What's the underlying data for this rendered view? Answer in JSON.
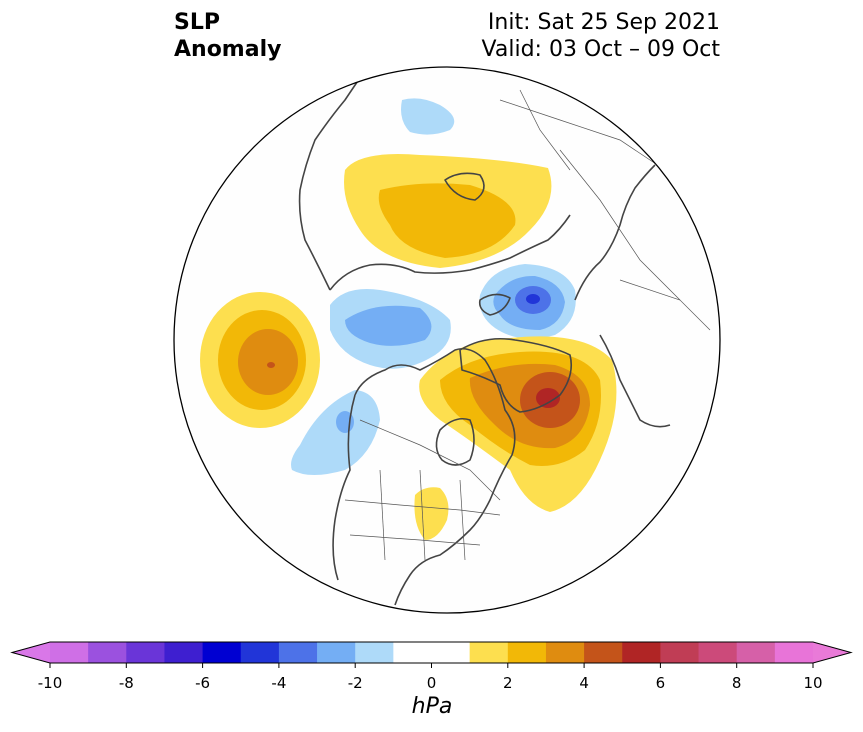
{
  "title": {
    "left_line1": "SLP",
    "left_line2": "Anomaly",
    "right_line1": "Init: Sat 25 Sep 2021",
    "right_line2": "Valid: 03 Oct – 09 Oct"
  },
  "map": {
    "projection": "north-polar-stereographic",
    "anomaly_centers": [
      {
        "name": "western-pacific-high",
        "peak_hpa": 3
      },
      {
        "name": "siberia-eurasia-high",
        "peak_hpa": 2
      },
      {
        "name": "greenland-north-atlantic-high",
        "peak_hpa": 5
      },
      {
        "name": "central-us-high",
        "peak_hpa": 1
      },
      {
        "name": "europe-low",
        "peak_hpa": -5
      },
      {
        "name": "bering-alaska-low",
        "peak_hpa": -3
      },
      {
        "name": "gulf-of-alaska-low",
        "peak_hpa": -3
      },
      {
        "name": "western-russia-low",
        "peak_hpa": -2
      }
    ]
  },
  "colorbar": {
    "unit": "hPa",
    "min": -10,
    "max": 10,
    "ticks": [
      "-10",
      "-8",
      "-6",
      "-4",
      "-2",
      "0",
      "2",
      "4",
      "6",
      "8",
      "10"
    ],
    "extend": "both",
    "colors": [
      "#cf6fe6",
      "#9b51df",
      "#6a35d8",
      "#3e1fd0",
      "#0000d2",
      "#2135d8",
      "#4d72e8",
      "#74aef4",
      "#aedaf9",
      "#ffffff",
      "#ffffff",
      "#fddf4f",
      "#f2b807",
      "#df8c10",
      "#c4541a",
      "#b02525",
      "#c03d55",
      "#cc4a7a",
      "#d660a8",
      "#e874d8"
    ],
    "low_end_color": "#d977e8",
    "high_end_color": "#e97ad8"
  }
}
